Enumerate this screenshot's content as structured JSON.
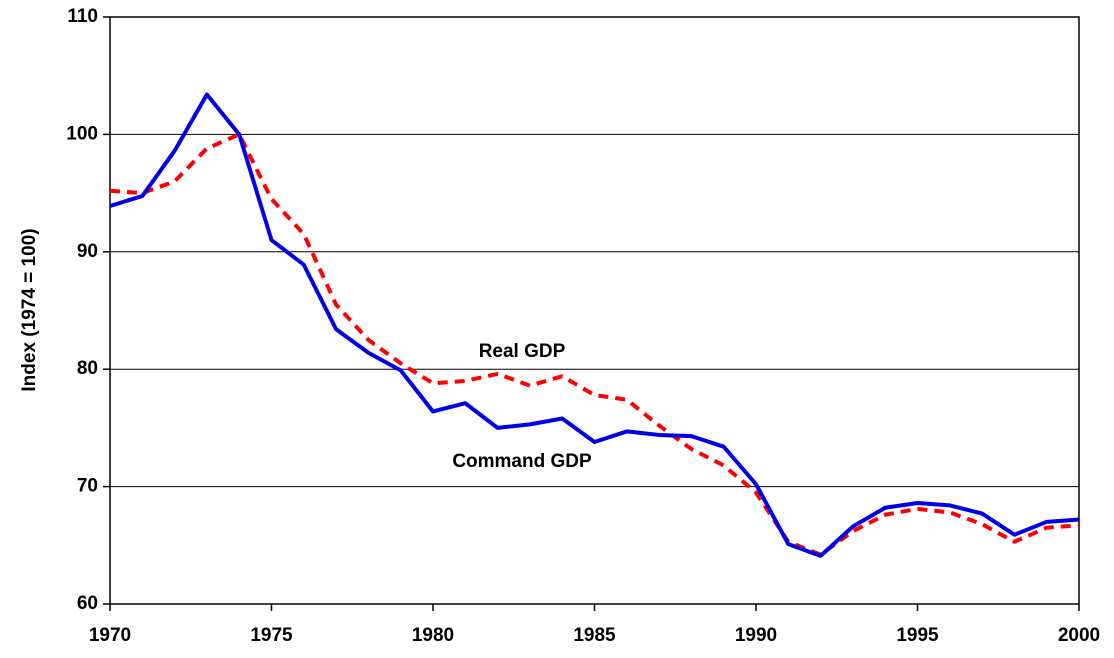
{
  "chart_data": {
    "type": "line",
    "y_label": "Index (1974 = 100)",
    "x": [
      1970,
      1971,
      1972,
      1973,
      1974,
      1975,
      1976,
      1977,
      1978,
      1979,
      1980,
      1981,
      1982,
      1983,
      1984,
      1985,
      1986,
      1987,
      1988,
      1989,
      1990,
      1991,
      1992,
      1993,
      1994,
      1995,
      1996,
      1997,
      1998,
      1999,
      2000
    ],
    "series": [
      {
        "name": "Real GDP",
        "color": "#ff0000",
        "style": "dashed",
        "values": [
          95.2,
          95.0,
          96.0,
          98.8,
          100.0,
          94.5,
          91.5,
          85.5,
          82.5,
          80.5,
          78.8,
          79.0,
          79.6,
          78.6,
          79.4,
          77.8,
          77.4,
          75.2,
          73.2,
          71.8,
          69.5,
          65.3,
          64.2,
          66.2,
          67.6,
          68.1,
          67.8,
          66.8,
          65.3,
          66.5,
          66.7
        ]
      },
      {
        "name": "Command GDP",
        "color": "#0000e6",
        "style": "solid",
        "values": [
          93.9,
          94.75,
          98.6,
          103.4,
          100.0,
          91.0,
          88.9,
          83.4,
          81.4,
          79.9,
          76.4,
          77.1,
          75.0,
          75.3,
          75.8,
          73.8,
          74.7,
          74.4,
          74.3,
          73.4,
          70.2,
          65.1,
          64.1,
          66.6,
          68.2,
          68.6,
          68.4,
          67.7,
          65.9,
          67.0,
          67.2
        ]
      }
    ],
    "xlim": [
      1970,
      2000
    ],
    "xticks": [
      1970,
      1975,
      1980,
      1985,
      1990,
      1995,
      2000
    ],
    "ylim": [
      60,
      110
    ],
    "yticks": [
      60,
      70,
      80,
      90,
      100,
      110
    ],
    "grid": true
  }
}
